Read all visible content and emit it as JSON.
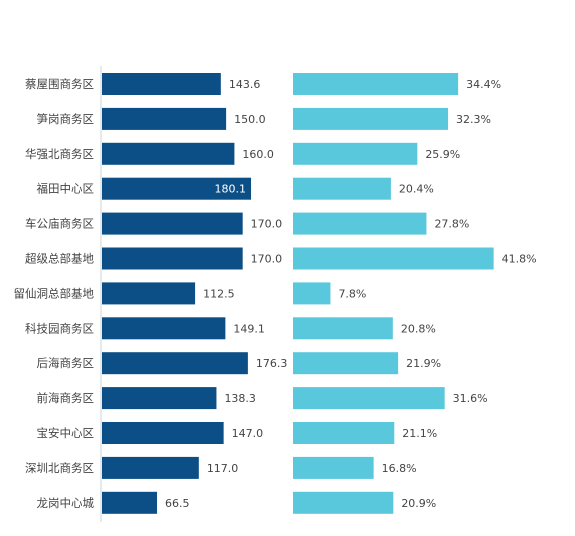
{
  "colors": {
    "left_bar": "#0b4f86",
    "right_bar": "#5ac8dc",
    "axis": "#cfd4d9",
    "text": "#444444"
  },
  "chart_data": [
    {
      "type": "bar",
      "orientation": "horizontal",
      "categories": [
        "蔡屋围商务区",
        "笋岗商务区",
        "华强北商务区",
        "福田中心区",
        "车公庙商务区",
        "超级总部基地",
        "留仙洞总部基地",
        "科技园商务区",
        "后海商务区",
        "前海商务区",
        "宝安中心区",
        "深圳北商务区",
        "龙岗中心城"
      ],
      "values": [
        143.6,
        150.0,
        160.0,
        180.1,
        170.0,
        170.0,
        112.5,
        149.1,
        176.3,
        138.3,
        147.0,
        117.0,
        66.5
      ],
      "labels": [
        "143.6",
        "150.0",
        "160.0",
        "180.1",
        "170.0",
        "170.0",
        "112.5",
        "149.1",
        "176.3",
        "138.3",
        "147.0",
        "117.0",
        "66.5"
      ],
      "xlim": [
        0,
        200
      ],
      "grid": false,
      "title": "",
      "xlabel": "",
      "ylabel": ""
    },
    {
      "type": "bar",
      "orientation": "horizontal",
      "categories": [
        "蔡屋围商务区",
        "笋岗商务区",
        "华强北商务区",
        "福田中心区",
        "车公庙商务区",
        "超级总部基地",
        "留仙洞总部基地",
        "科技园商务区",
        "后海商务区",
        "前海商务区",
        "宝安中心区",
        "深圳北商务区",
        "龙岗中心城"
      ],
      "values": [
        34.4,
        32.3,
        25.9,
        20.4,
        27.8,
        41.8,
        7.8,
        20.8,
        21.9,
        31.6,
        21.1,
        16.8,
        20.9
      ],
      "labels": [
        "34.4%",
        "32.3%",
        "25.9%",
        "20.4%",
        "27.8%",
        "41.8%",
        "7.8%",
        "20.8%",
        "21.9%",
        "31.6%",
        "21.1%",
        "16.8%",
        "20.9%"
      ],
      "unit": "%",
      "xlim": [
        0,
        50
      ],
      "grid": false,
      "title": "",
      "xlabel": "",
      "ylabel": ""
    }
  ]
}
